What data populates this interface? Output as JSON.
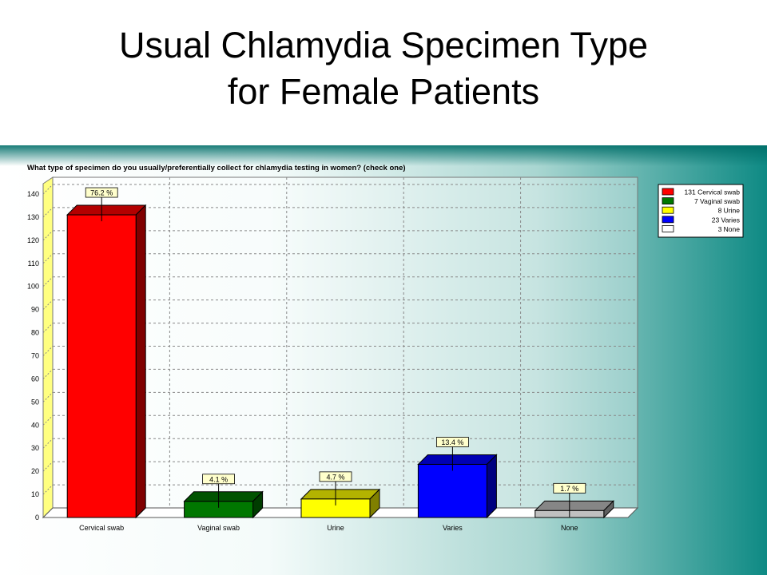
{
  "slide": {
    "title_line1": "Usual Chlamydia Specimen Type",
    "title_line2": "for Female Patients"
  },
  "chart_data": {
    "type": "bar",
    "title": "What type of specimen do you usually/preferentially collect for chlamydia testing in women? (check one)",
    "categories": [
      "Cervical swab",
      "Vaginal swab",
      "Urine",
      "Varies",
      "None"
    ],
    "values": [
      131,
      7,
      8,
      23,
      3
    ],
    "data_labels": [
      "76.2 %",
      "4.1 %",
      "4.7 %",
      "13.4 %",
      "1.7 %"
    ],
    "colors": [
      "#ff0000",
      "#007700",
      "#ffff00",
      "#0000ff",
      "#c0c0c0"
    ],
    "legend": {
      "placement": "top-right",
      "entries": [
        "131 Cervical swab",
        "7 Vaginal swab",
        "8 Urine",
        "23 Varies",
        "3 None"
      ],
      "colors": [
        "#ff0000",
        "#007700",
        "#ffff00",
        "#0000ff",
        "#ffffff"
      ]
    },
    "y_ticks": [
      0,
      10,
      20,
      30,
      40,
      50,
      60,
      70,
      80,
      90,
      100,
      110,
      120,
      130,
      140
    ],
    "ylim": [
      0,
      140
    ],
    "grid": true,
    "three_d": true
  }
}
